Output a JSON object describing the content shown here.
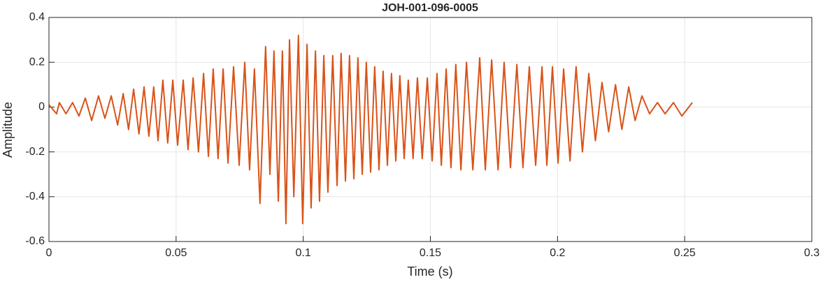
{
  "chart_data": {
    "type": "line",
    "title": "JOH-001-096-0005",
    "xlabel": "Time (s)",
    "ylabel": "Amplitude",
    "color": "#d95319",
    "grid": true,
    "xlim": [
      0,
      0.3
    ],
    "xticks": [
      0,
      0.05,
      0.1,
      0.15,
      0.2,
      0.25,
      0.3
    ],
    "ylim": [
      -0.6,
      0.4
    ],
    "yticks": [
      -0.6,
      -0.4,
      -0.2,
      0,
      0.2,
      0.4
    ],
    "x": [
      0,
      0.003,
      0.0041,
      0.0067,
      0.0093,
      0.0118,
      0.0143,
      0.0168,
      0.0195,
      0.022,
      0.0245,
      0.027,
      0.0292,
      0.0313,
      0.0333,
      0.0354,
      0.0374,
      0.0393,
      0.0412,
      0.0429,
      0.0448,
      0.0467,
      0.0487,
      0.0506,
      0.0528,
      0.0547,
      0.0567,
      0.0588,
      0.0608,
      0.0627,
      0.0646,
      0.0665,
      0.0685,
      0.0704,
      0.0726,
      0.0748,
      0.077,
      0.0789,
      0.0808,
      0.083,
      0.0852,
      0.0869,
      0.0885,
      0.0902,
      0.0918,
      0.0932,
      0.0946,
      0.0963,
      0.0981,
      0.0998,
      0.1015,
      0.1031,
      0.1048,
      0.1064,
      0.1081,
      0.1097,
      0.1116,
      0.1133,
      0.1149,
      0.1166,
      0.1182,
      0.1199,
      0.1215,
      0.1232,
      0.1248,
      0.1265,
      0.1281,
      0.1298,
      0.1314,
      0.1331,
      0.1347,
      0.1364,
      0.138,
      0.1397,
      0.1413,
      0.1432,
      0.1449,
      0.1468,
      0.1488,
      0.1507,
      0.1526,
      0.1543,
      0.1562,
      0.1581,
      0.16,
      0.162,
      0.1642,
      0.1667,
      0.1694,
      0.1716,
      0.1741,
      0.1766,
      0.179,
      0.1815,
      0.184,
      0.1864,
      0.1889,
      0.1914,
      0.1939,
      0.1958,
      0.198,
      0.2002,
      0.2024,
      0.2049,
      0.2073,
      0.2098,
      0.2123,
      0.2149,
      0.2175,
      0.2201,
      0.2228,
      0.2253,
      0.228,
      0.2305,
      0.2332,
      0.2362,
      0.2393,
      0.2423,
      0.2456,
      0.2489,
      0.253
    ],
    "values": [
      0.01,
      -0.03,
      0.02,
      -0.03,
      0.02,
      -0.04,
      0.04,
      -0.06,
      0.05,
      -0.05,
      0.05,
      -0.08,
      0.06,
      -0.1,
      0.08,
      -0.12,
      0.09,
      -0.13,
      0.09,
      -0.15,
      0.12,
      -0.16,
      0.12,
      -0.17,
      0.12,
      -0.19,
      0.13,
      -0.2,
      0.15,
      -0.22,
      0.17,
      -0.23,
      0.17,
      -0.25,
      0.18,
      -0.26,
      0.2,
      -0.28,
      0.17,
      -0.43,
      0.27,
      -0.3,
      0.25,
      -0.42,
      0.25,
      -0.52,
      0.3,
      -0.4,
      0.32,
      -0.52,
      0.28,
      -0.45,
      0.25,
      -0.42,
      0.23,
      -0.38,
      0.23,
      -0.35,
      0.24,
      -0.33,
      0.23,
      -0.32,
      0.22,
      -0.3,
      0.2,
      -0.29,
      0.18,
      -0.28,
      0.16,
      -0.26,
      0.15,
      -0.24,
      0.14,
      -0.23,
      0.12,
      -0.23,
      0.13,
      -0.23,
      0.13,
      -0.24,
      0.15,
      -0.26,
      0.17,
      -0.27,
      0.19,
      -0.28,
      0.2,
      -0.28,
      0.22,
      -0.28,
      0.21,
      -0.28,
      0.2,
      -0.27,
      0.19,
      -0.27,
      0.18,
      -0.26,
      0.18,
      -0.26,
      0.18,
      -0.25,
      0.17,
      -0.24,
      0.18,
      -0.2,
      0.15,
      -0.15,
      0.11,
      -0.11,
      0.1,
      -0.1,
      0.09,
      -0.06,
      0.05,
      -0.03,
      0.02,
      -0.03,
      0.02,
      -0.04,
      0.02
    ]
  }
}
